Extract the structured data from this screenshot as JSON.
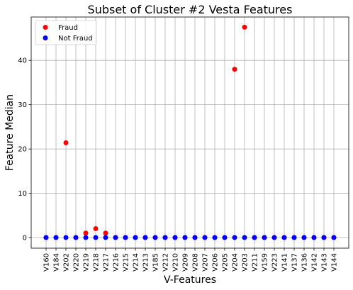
{
  "chart_data": {
    "type": "scatter",
    "title": "Subset of Cluster #2 Vesta Features",
    "xlabel": "V-Features",
    "ylabel": "Feature Median",
    "categories": [
      "V160",
      "V184",
      "V202",
      "V220",
      "V219",
      "V218",
      "V217",
      "V216",
      "V215",
      "V214",
      "V213",
      "V185",
      "V212",
      "V210",
      "V209",
      "V208",
      "V207",
      "V206",
      "V205",
      "V204",
      "V203",
      "V211",
      "V159",
      "V223",
      "V141",
      "V137",
      "V136",
      "V142",
      "V143",
      "V144"
    ],
    "ylim": [
      -2.4,
      49.8
    ],
    "yticks": [
      0,
      10,
      20,
      30,
      40
    ],
    "grid": true,
    "legend_position": "top-left",
    "series": [
      {
        "name": "Fraud",
        "color": "#ff0000",
        "values": [
          0,
          0,
          21.4,
          0,
          1,
          2,
          1,
          0,
          0,
          0,
          0,
          0,
          0,
          0,
          0,
          0,
          0,
          0,
          0,
          38,
          47.5,
          0,
          0,
          0,
          0,
          0,
          0,
          0,
          0,
          0
        ]
      },
      {
        "name": "Not Fraud",
        "color": "#0000ff",
        "values": [
          0,
          0,
          0,
          0,
          0,
          0,
          0,
          0,
          0,
          0,
          0,
          0,
          0,
          0,
          0,
          0,
          0,
          0,
          0,
          0,
          0,
          0,
          0,
          0,
          0,
          0,
          0,
          0,
          0,
          0
        ]
      }
    ]
  }
}
